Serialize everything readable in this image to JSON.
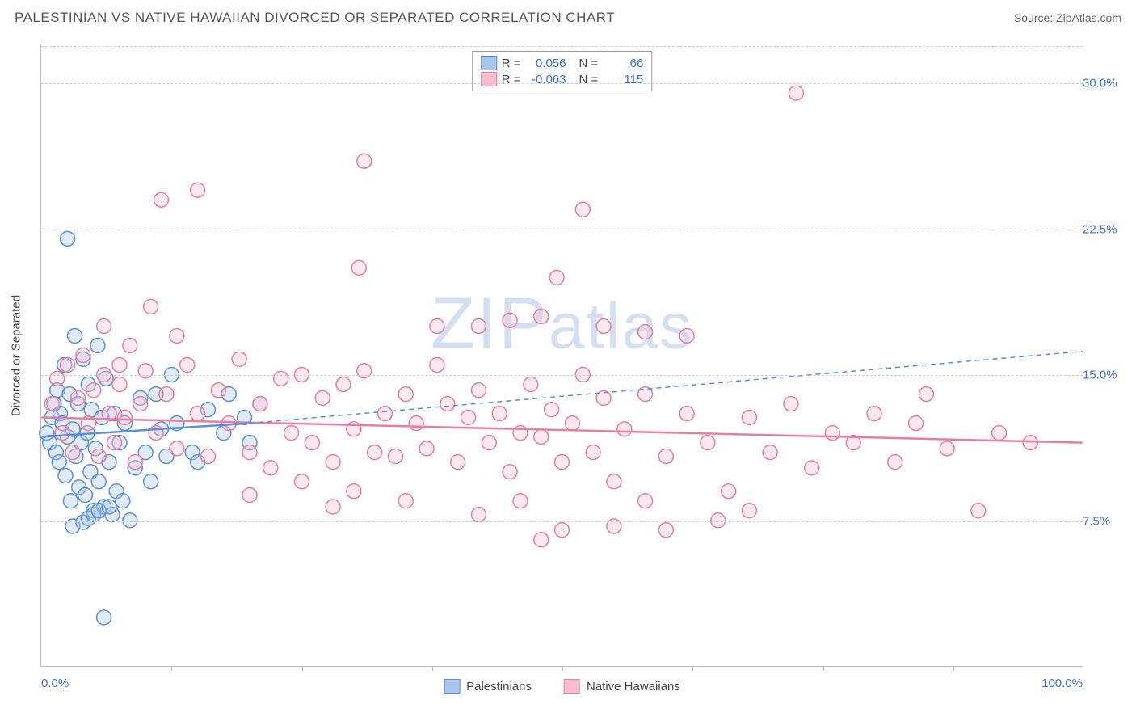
{
  "header": {
    "title": "PALESTINIAN VS NATIVE HAWAIIAN DIVORCED OR SEPARATED CORRELATION CHART",
    "source": "Source: ZipAtlas.com"
  },
  "chart": {
    "type": "scatter",
    "ylabel": "Divorced or Separated",
    "xlim": [
      0,
      100
    ],
    "ylim": [
      0,
      32
    ],
    "xlabel_min": "0.0%",
    "xlabel_max": "100.0%",
    "yticks": [
      {
        "v": 7.5,
        "label": "7.5%"
      },
      {
        "v": 15.0,
        "label": "15.0%"
      },
      {
        "v": 22.5,
        "label": "22.5%"
      },
      {
        "v": 30.0,
        "label": "30.0%"
      }
    ],
    "xticks_minor": [
      12.5,
      25,
      37.5,
      50,
      62.5,
      75,
      87.5
    ],
    "watermark": "ZIPatlas",
    "background_color": "#ffffff",
    "grid_color": "#cccccc",
    "marker_radius": 9,
    "marker_stroke_width": 1.5,
    "marker_fill_opacity": 0.35,
    "series": {
      "palestinians": {
        "label": "Palestinians",
        "color_stroke": "#5b8fd6",
        "color_fill": "#a8c5ec",
        "R": "0.056",
        "N": "66",
        "trend_solid": {
          "x1": 0,
          "y1": 11.8,
          "x2": 20,
          "y2": 12.5
        },
        "trend_dashed": {
          "x1": 20,
          "y1": 12.5,
          "x2": 100,
          "y2": 16.2
        },
        "points": [
          [
            0.5,
            12.0
          ],
          [
            0.8,
            11.5
          ],
          [
            1.0,
            12.8
          ],
          [
            1.2,
            13.5
          ],
          [
            1.4,
            11.0
          ],
          [
            1.5,
            14.2
          ],
          [
            1.7,
            10.5
          ],
          [
            1.8,
            13.0
          ],
          [
            2.0,
            12.5
          ],
          [
            2.2,
            15.5
          ],
          [
            2.3,
            9.8
          ],
          [
            2.5,
            11.8
          ],
          [
            2.7,
            14.0
          ],
          [
            2.8,
            8.5
          ],
          [
            3.0,
            12.2
          ],
          [
            3.2,
            17.0
          ],
          [
            3.3,
            10.8
          ],
          [
            3.5,
            13.5
          ],
          [
            3.6,
            9.2
          ],
          [
            3.8,
            11.5
          ],
          [
            4.0,
            15.8
          ],
          [
            4.2,
            8.8
          ],
          [
            4.4,
            12.0
          ],
          [
            4.5,
            14.5
          ],
          [
            4.7,
            10.0
          ],
          [
            4.8,
            13.2
          ],
          [
            5.0,
            8.0
          ],
          [
            5.2,
            11.2
          ],
          [
            5.4,
            16.5
          ],
          [
            5.5,
            9.5
          ],
          [
            5.8,
            12.8
          ],
          [
            6.0,
            8.2
          ],
          [
            6.2,
            14.8
          ],
          [
            6.5,
            10.5
          ],
          [
            6.8,
            7.8
          ],
          [
            7.0,
            13.0
          ],
          [
            7.2,
            9.0
          ],
          [
            7.5,
            11.5
          ],
          [
            7.8,
            8.5
          ],
          [
            8.0,
            12.5
          ],
          [
            8.5,
            7.5
          ],
          [
            9.0,
            10.2
          ],
          [
            9.5,
            13.8
          ],
          [
            10.0,
            11.0
          ],
          [
            10.5,
            9.5
          ],
          [
            11.0,
            14.0
          ],
          [
            11.5,
            12.2
          ],
          [
            12.0,
            10.8
          ],
          [
            2.5,
            22.0
          ],
          [
            6.0,
            2.5
          ],
          [
            3.0,
            7.2
          ],
          [
            4.0,
            7.4
          ],
          [
            4.5,
            7.6
          ],
          [
            5.0,
            7.8
          ],
          [
            5.5,
            8.0
          ],
          [
            6.5,
            8.2
          ],
          [
            13.0,
            12.5
          ],
          [
            14.5,
            11.0
          ],
          [
            16.0,
            13.2
          ],
          [
            18.0,
            14.0
          ],
          [
            19.5,
            12.8
          ],
          [
            20.0,
            11.5
          ],
          [
            21.0,
            13.5
          ],
          [
            17.5,
            12.0
          ],
          [
            15.0,
            10.5
          ],
          [
            12.5,
            15.0
          ]
        ]
      },
      "native_hawaiians": {
        "label": "Native Hawaiians",
        "color_stroke": "#e87da0",
        "color_fill": "#f5bfd0",
        "R": "-0.063",
        "N": "115",
        "trend_solid": {
          "x1": 0,
          "y1": 12.8,
          "x2": 100,
          "y2": 11.5
        },
        "points": [
          [
            1.0,
            13.5
          ],
          [
            1.5,
            14.8
          ],
          [
            2.0,
            12.0
          ],
          [
            2.5,
            15.5
          ],
          [
            3.0,
            11.0
          ],
          [
            3.5,
            13.8
          ],
          [
            4.0,
            16.0
          ],
          [
            4.5,
            12.5
          ],
          [
            5.0,
            14.2
          ],
          [
            5.5,
            10.8
          ],
          [
            6.0,
            15.0
          ],
          [
            6.5,
            13.0
          ],
          [
            7.0,
            11.5
          ],
          [
            7.5,
            14.5
          ],
          [
            8.0,
            12.8
          ],
          [
            8.5,
            16.5
          ],
          [
            9.0,
            10.5
          ],
          [
            9.5,
            13.5
          ],
          [
            10.0,
            15.2
          ],
          [
            11.0,
            12.0
          ],
          [
            12.0,
            14.0
          ],
          [
            13.0,
            11.2
          ],
          [
            14.0,
            15.5
          ],
          [
            15.0,
            13.0
          ],
          [
            16.0,
            10.8
          ],
          [
            17.0,
            14.2
          ],
          [
            18.0,
            12.5
          ],
          [
            19.0,
            15.8
          ],
          [
            20.0,
            11.0
          ],
          [
            21.0,
            13.5
          ],
          [
            22.0,
            10.2
          ],
          [
            23.0,
            14.8
          ],
          [
            24.0,
            12.0
          ],
          [
            25.0,
            15.0
          ],
          [
            26.0,
            11.5
          ],
          [
            27.0,
            13.8
          ],
          [
            28.0,
            10.5
          ],
          [
            29.0,
            14.5
          ],
          [
            30.0,
            12.2
          ],
          [
            31.0,
            15.2
          ],
          [
            32.0,
            11.0
          ],
          [
            33.0,
            13.0
          ],
          [
            34.0,
            10.8
          ],
          [
            35.0,
            14.0
          ],
          [
            36.0,
            12.5
          ],
          [
            37.0,
            11.2
          ],
          [
            38.0,
            15.5
          ],
          [
            39.0,
            13.5
          ],
          [
            40.0,
            10.5
          ],
          [
            41.0,
            12.8
          ],
          [
            42.0,
            14.2
          ],
          [
            43.0,
            11.5
          ],
          [
            44.0,
            13.0
          ],
          [
            45.0,
            10.0
          ],
          [
            46.0,
            12.0
          ],
          [
            47.0,
            14.5
          ],
          [
            48.0,
            11.8
          ],
          [
            49.0,
            13.2
          ],
          [
            50.0,
            10.5
          ],
          [
            51.0,
            12.5
          ],
          [
            52.0,
            15.0
          ],
          [
            53.0,
            11.0
          ],
          [
            54.0,
            13.8
          ],
          [
            55.0,
            9.5
          ],
          [
            56.0,
            12.2
          ],
          [
            58.0,
            14.0
          ],
          [
            60.0,
            10.8
          ],
          [
            62.0,
            13.0
          ],
          [
            64.0,
            11.5
          ],
          [
            66.0,
            9.0
          ],
          [
            68.0,
            12.8
          ],
          [
            70.0,
            11.0
          ],
          [
            72.0,
            13.5
          ],
          [
            74.0,
            10.2
          ],
          [
            76.0,
            12.0
          ],
          [
            78.0,
            11.5
          ],
          [
            80.0,
            13.0
          ],
          [
            82.0,
            10.5
          ],
          [
            84.0,
            12.5
          ],
          [
            85.0,
            14.0
          ],
          [
            87.0,
            11.2
          ],
          [
            72.5,
            29.5
          ],
          [
            11.5,
            24.0
          ],
          [
            15.0,
            24.5
          ],
          [
            31.0,
            26.0
          ],
          [
            30.5,
            20.5
          ],
          [
            52.0,
            23.5
          ],
          [
            49.5,
            20.0
          ],
          [
            42.0,
            17.5
          ],
          [
            45.0,
            17.8
          ],
          [
            48.0,
            18.0
          ],
          [
            54.0,
            17.5
          ],
          [
            58.0,
            17.2
          ],
          [
            62.0,
            17.0
          ],
          [
            38.0,
            17.5
          ],
          [
            10.5,
            18.5
          ],
          [
            13.0,
            17.0
          ],
          [
            6.0,
            17.5
          ],
          [
            7.5,
            15.5
          ],
          [
            46.0,
            8.5
          ],
          [
            50.0,
            7.0
          ],
          [
            48.0,
            6.5
          ],
          [
            55.0,
            7.2
          ],
          [
            60.0,
            7.0
          ],
          [
            65.0,
            7.5
          ],
          [
            68.0,
            8.0
          ],
          [
            58.0,
            8.5
          ],
          [
            42.0,
            7.8
          ],
          [
            90.0,
            8.0
          ],
          [
            35.0,
            8.5
          ],
          [
            30.0,
            9.0
          ],
          [
            28.0,
            8.2
          ],
          [
            25.0,
            9.5
          ],
          [
            20.0,
            8.8
          ],
          [
            92.0,
            12.0
          ],
          [
            95.0,
            11.5
          ]
        ]
      }
    }
  },
  "bottom_legend": [
    {
      "key": "palestinians"
    },
    {
      "key": "native_hawaiians"
    }
  ]
}
